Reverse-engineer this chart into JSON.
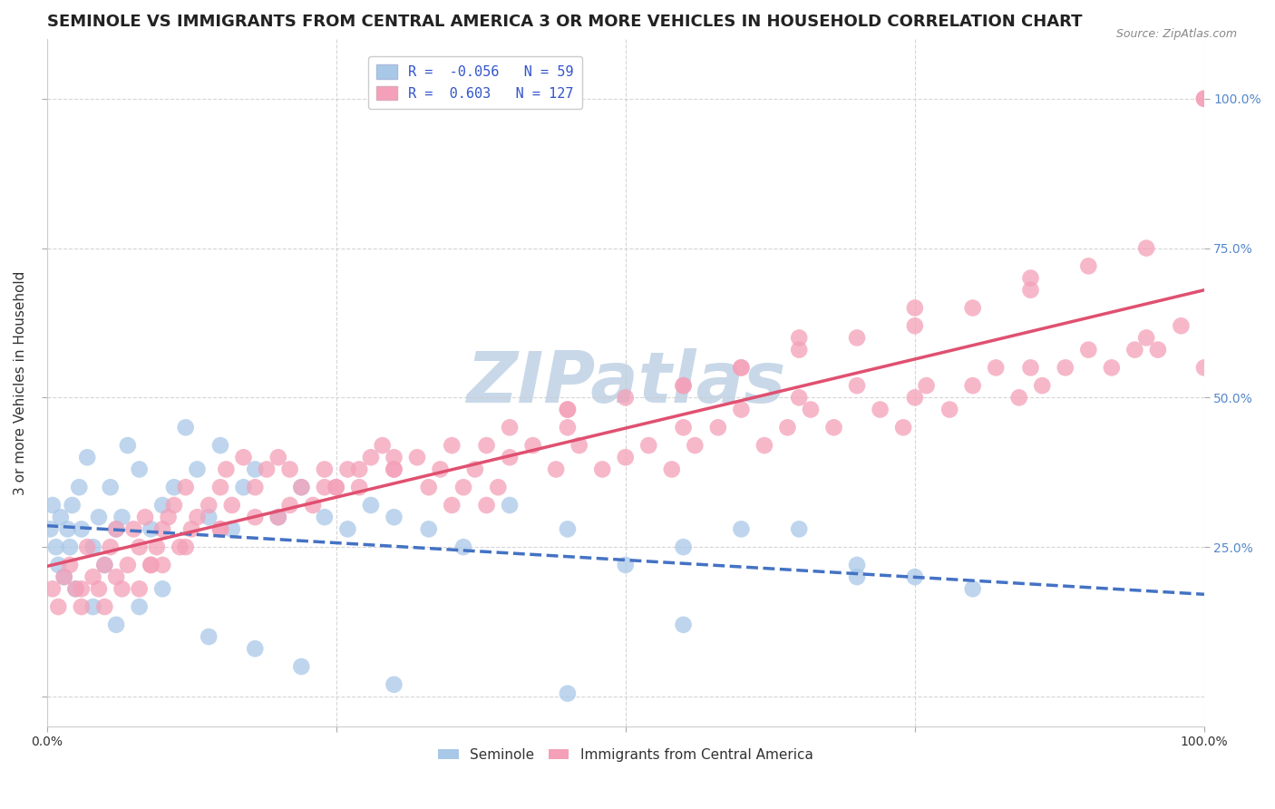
{
  "title": "SEMINOLE VS IMMIGRANTS FROM CENTRAL AMERICA 3 OR MORE VEHICLES IN HOUSEHOLD CORRELATION CHART",
  "source": "Source: ZipAtlas.com",
  "ylabel": "3 or more Vehicles in Household",
  "xlim": [
    0.0,
    100.0
  ],
  "ylim": [
    -5.0,
    110.0
  ],
  "yticks": [
    0.0,
    25.0,
    50.0,
    75.0,
    100.0
  ],
  "xticks": [
    0.0,
    25.0,
    50.0,
    75.0,
    100.0
  ],
  "xtick_labels": [
    "0.0%",
    "",
    "",
    "",
    "100.0%"
  ],
  "right_ytick_labels": [
    "25.0%",
    "50.0%",
    "75.0%",
    "100.0%"
  ],
  "right_yticks": [
    25.0,
    50.0,
    75.0,
    100.0
  ],
  "series": [
    {
      "name": "Seminole",
      "R": -0.056,
      "N": 59,
      "color": "#a8c8e8",
      "line_color": "#4472c4",
      "line_style": "--",
      "x": [
        0.3,
        0.5,
        0.8,
        1.0,
        1.2,
        1.5,
        1.8,
        2.0,
        2.2,
        2.5,
        2.8,
        3.0,
        3.5,
        4.0,
        4.5,
        5.0,
        5.5,
        6.0,
        6.5,
        7.0,
        8.0,
        9.0,
        10.0,
        11.0,
        12.0,
        13.0,
        14.0,
        15.0,
        16.0,
        17.0,
        18.0,
        20.0,
        22.0,
        24.0,
        26.0,
        28.0,
        30.0,
        33.0,
        36.0,
        40.0,
        45.0,
        50.0,
        55.0,
        60.0,
        65.0,
        70.0,
        75.0,
        4.0,
        6.0,
        8.0,
        10.0,
        14.0,
        18.0,
        22.0,
        30.0,
        45.0,
        55.0,
        70.0,
        80.0
      ],
      "y": [
        28.0,
        32.0,
        25.0,
        22.0,
        30.0,
        20.0,
        28.0,
        25.0,
        32.0,
        18.0,
        35.0,
        28.0,
        40.0,
        25.0,
        30.0,
        22.0,
        35.0,
        28.0,
        30.0,
        42.0,
        38.0,
        28.0,
        32.0,
        35.0,
        45.0,
        38.0,
        30.0,
        42.0,
        28.0,
        35.0,
        38.0,
        30.0,
        35.0,
        30.0,
        28.0,
        32.0,
        30.0,
        28.0,
        25.0,
        32.0,
        28.0,
        22.0,
        25.0,
        28.0,
        28.0,
        22.0,
        20.0,
        15.0,
        12.0,
        15.0,
        18.0,
        10.0,
        8.0,
        5.0,
        2.0,
        0.5,
        12.0,
        20.0,
        18.0
      ]
    },
    {
      "name": "Immigrants from Central America",
      "R": 0.603,
      "N": 127,
      "color": "#f4a0b8",
      "line_color": "#e05070",
      "line_style": "-",
      "x": [
        0.5,
        1.0,
        1.5,
        2.0,
        2.5,
        3.0,
        3.5,
        4.0,
        4.5,
        5.0,
        5.5,
        6.0,
        6.5,
        7.0,
        7.5,
        8.0,
        8.5,
        9.0,
        9.5,
        10.0,
        10.5,
        11.0,
        11.5,
        12.0,
        12.5,
        13.0,
        14.0,
        15.0,
        15.5,
        16.0,
        17.0,
        18.0,
        19.0,
        20.0,
        21.0,
        22.0,
        23.0,
        24.0,
        25.0,
        26.0,
        27.0,
        28.0,
        29.0,
        30.0,
        32.0,
        33.0,
        34.0,
        35.0,
        36.0,
        37.0,
        38.0,
        39.0,
        40.0,
        42.0,
        44.0,
        45.0,
        46.0,
        48.0,
        50.0,
        52.0,
        54.0,
        55.0,
        56.0,
        58.0,
        60.0,
        62.0,
        64.0,
        65.0,
        66.0,
        68.0,
        70.0,
        72.0,
        74.0,
        75.0,
        76.0,
        78.0,
        80.0,
        82.0,
        84.0,
        85.0,
        86.0,
        88.0,
        90.0,
        92.0,
        94.0,
        95.0,
        96.0,
        98.0,
        100.0,
        3.0,
        6.0,
        9.0,
        12.0,
        15.0,
        18.0,
        21.0,
        24.0,
        27.0,
        30.0,
        35.0,
        40.0,
        45.0,
        50.0,
        55.0,
        60.0,
        65.0,
        70.0,
        75.0,
        80.0,
        85.0,
        90.0,
        95.0,
        100.0,
        5.0,
        8.0,
        10.0,
        15.0,
        20.0,
        25.0,
        30.0,
        38.0,
        45.0,
        55.0,
        60.0,
        65.0,
        75.0,
        85.0,
        100.0
      ],
      "y": [
        18.0,
        15.0,
        20.0,
        22.0,
        18.0,
        15.0,
        25.0,
        20.0,
        18.0,
        22.0,
        25.0,
        28.0,
        18.0,
        22.0,
        28.0,
        25.0,
        30.0,
        22.0,
        25.0,
        28.0,
        30.0,
        32.0,
        25.0,
        35.0,
        28.0,
        30.0,
        32.0,
        35.0,
        38.0,
        32.0,
        40.0,
        35.0,
        38.0,
        40.0,
        38.0,
        35.0,
        32.0,
        38.0,
        35.0,
        38.0,
        35.0,
        40.0,
        42.0,
        38.0,
        40.0,
        35.0,
        38.0,
        32.0,
        35.0,
        38.0,
        32.0,
        35.0,
        40.0,
        42.0,
        38.0,
        45.0,
        42.0,
        38.0,
        40.0,
        42.0,
        38.0,
        45.0,
        42.0,
        45.0,
        48.0,
        42.0,
        45.0,
        50.0,
        48.0,
        45.0,
        52.0,
        48.0,
        45.0,
        50.0,
        52.0,
        48.0,
        52.0,
        55.0,
        50.0,
        55.0,
        52.0,
        55.0,
        58.0,
        55.0,
        58.0,
        60.0,
        58.0,
        62.0,
        55.0,
        18.0,
        20.0,
        22.0,
        25.0,
        28.0,
        30.0,
        32.0,
        35.0,
        38.0,
        40.0,
        42.0,
        45.0,
        48.0,
        50.0,
        52.0,
        55.0,
        58.0,
        60.0,
        62.0,
        65.0,
        68.0,
        72.0,
        75.0,
        100.0,
        15.0,
        18.0,
        22.0,
        28.0,
        30.0,
        35.0,
        38.0,
        42.0,
        48.0,
        52.0,
        55.0,
        60.0,
        65.0,
        70.0,
        100.0
      ]
    }
  ],
  "watermark_text": "ZIPatlas",
  "watermark_color": "#c8d8e8",
  "background_color": "#ffffff",
  "grid_color": "#cccccc",
  "title_fontsize": 13,
  "axis_label_fontsize": 11,
  "tick_fontsize": 10,
  "legend_fontsize": 11
}
